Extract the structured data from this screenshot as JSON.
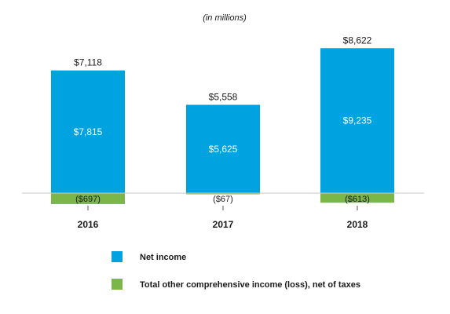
{
  "chart_data": {
    "type": "bar",
    "stacked": true,
    "subtitle": "(in millions)",
    "categories": [
      "2016",
      "2017",
      "2018"
    ],
    "series": [
      {
        "name": "Net income",
        "color": "#00a3e0",
        "values": [
          7815,
          5625,
          9235
        ],
        "labels": [
          "$7,815",
          "$5,625",
          "$9,235"
        ]
      },
      {
        "name": "Total other comprehensive income (loss), net of taxes",
        "color": "#7ab648",
        "values": [
          -697,
          -67,
          -613
        ],
        "labels": [
          "($697)",
          "($67)",
          "($613)"
        ]
      }
    ],
    "totals": [
      7118,
      5558,
      8622
    ],
    "total_labels": [
      "$7,118",
      "$5,558",
      "$8,622"
    ],
    "ylim": [
      -1000,
      10000
    ],
    "grid": false,
    "legend_position": "bottom"
  }
}
